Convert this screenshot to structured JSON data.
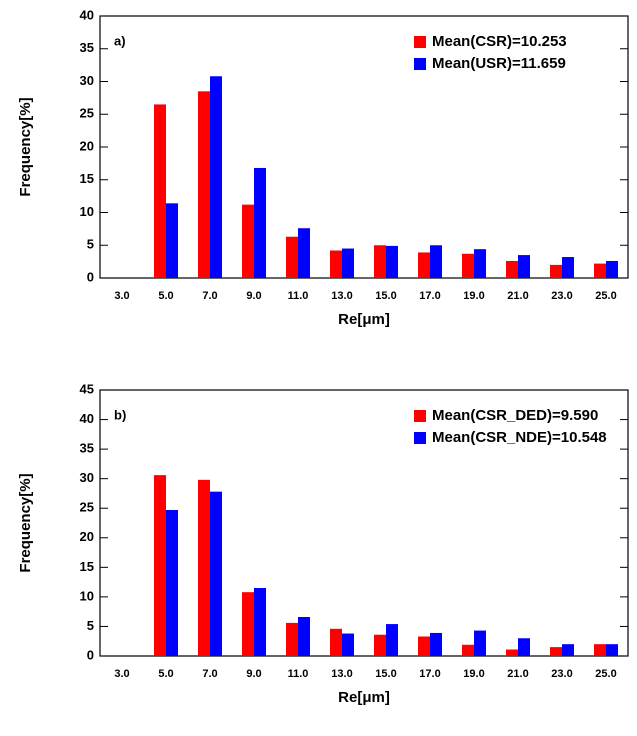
{
  "chart_data": [
    {
      "type": "bar",
      "panel_label": "a)",
      "xlabel": "Re[μm]",
      "ylabel": "Frequency[%]",
      "categories": [
        "3.0",
        "5.0",
        "7.0",
        "9.0",
        "11.0",
        "13.0",
        "15.0",
        "17.0",
        "19.0",
        "21.0",
        "23.0",
        "25.0"
      ],
      "series": [
        {
          "name": "Mean(CSR)=10.253",
          "color": "#ff0000",
          "values": [
            0,
            26.5,
            28.5,
            11.2,
            6.3,
            4.2,
            5.0,
            3.9,
            3.7,
            2.6,
            2.0,
            2.2
          ]
        },
        {
          "name": "Mean(USR)=11.659",
          "color": "#0000ff",
          "values": [
            0,
            11.4,
            30.8,
            16.8,
            7.6,
            4.5,
            4.9,
            5.0,
            4.4,
            3.5,
            3.2,
            2.6
          ]
        }
      ],
      "ylim": [
        0,
        40
      ],
      "yticks": [
        0,
        5,
        10,
        15,
        20,
        25,
        30,
        35,
        40
      ],
      "legend": "upper right"
    },
    {
      "type": "bar",
      "panel_label": "b)",
      "xlabel": "Re[μm]",
      "ylabel": "Frequency[%]",
      "categories": [
        "3.0",
        "5.0",
        "7.0",
        "9.0",
        "11.0",
        "13.0",
        "15.0",
        "17.0",
        "19.0",
        "21.0",
        "23.0",
        "25.0"
      ],
      "series": [
        {
          "name": "Mean(CSR_DED)=9.590",
          "color": "#ff0000",
          "values": [
            0,
            30.6,
            29.8,
            10.8,
            5.6,
            4.6,
            3.6,
            3.3,
            1.9,
            1.1,
            1.5,
            2.0
          ]
        },
        {
          "name": "Mean(CSR_NDE)=10.548",
          "color": "#0000ff",
          "values": [
            0,
            24.7,
            27.8,
            11.5,
            6.6,
            3.8,
            5.4,
            3.9,
            4.3,
            3.0,
            2.0,
            2.0
          ]
        }
      ],
      "ylim": [
        0,
        45
      ],
      "yticks": [
        0,
        5,
        10,
        15,
        20,
        25,
        30,
        35,
        40,
        45
      ],
      "legend": "upper right"
    }
  ]
}
